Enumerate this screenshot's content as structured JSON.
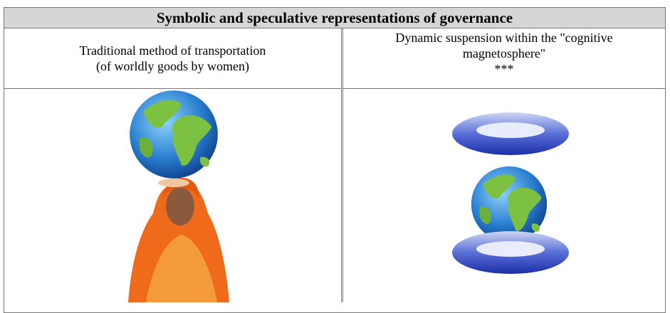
{
  "table": {
    "title": "Symbolic and speculative representations of governance",
    "columns": [
      {
        "lines": [
          "Traditional method of transportation",
          "(of worldly goods by women)"
        ]
      },
      {
        "lines": [
          "Dynamic suspension within the \"cognitive",
          "magnetosphere\"",
          "***"
        ]
      }
    ]
  }
}
